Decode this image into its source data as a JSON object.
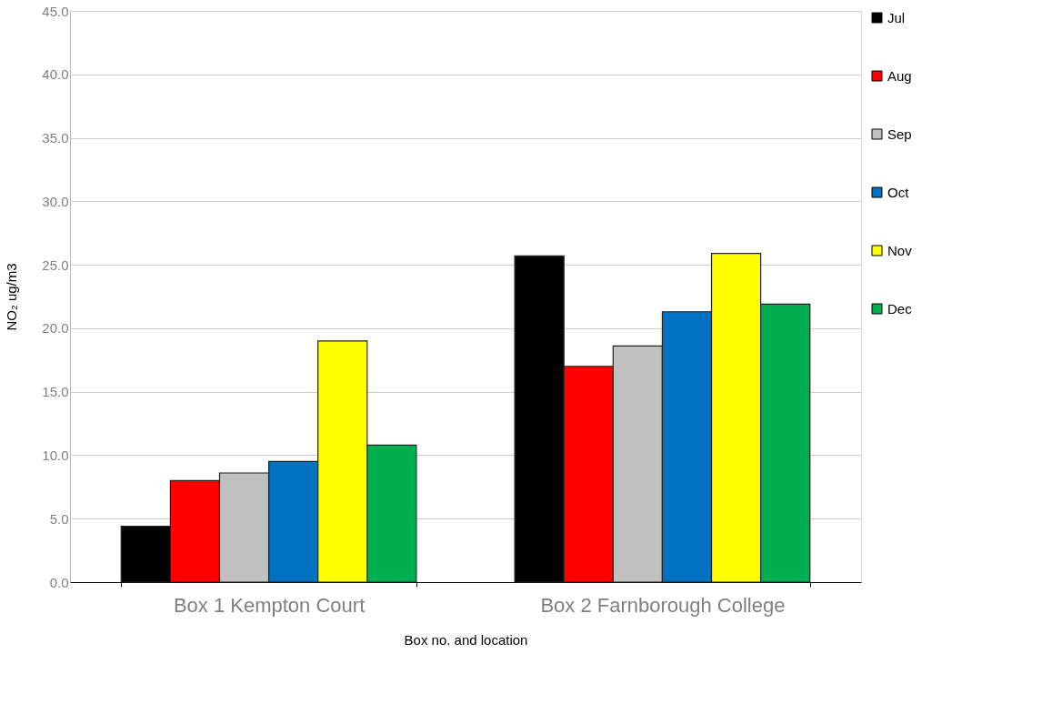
{
  "chart_data": {
    "type": "bar",
    "xlabel": "Box no. and location",
    "ylabel": "NO₂ ug/m3",
    "categories": [
      "Box 1 Kempton Court",
      "Box 2 Farnborough College"
    ],
    "series": [
      {
        "name": "Jul",
        "color": "#000000",
        "values": [
          4.4,
          25.7
        ]
      },
      {
        "name": "Aug",
        "color": "#ff0000",
        "values": [
          8.0,
          17.0
        ]
      },
      {
        "name": "Sep",
        "color": "#c0c0c0",
        "values": [
          8.6,
          18.6
        ]
      },
      {
        "name": "Oct",
        "color": "#0070c0",
        "values": [
          9.5,
          21.3
        ]
      },
      {
        "name": "Nov",
        "color": "#ffff00",
        "values": [
          19.0,
          25.9
        ]
      },
      {
        "name": "Dec",
        "color": "#00b050",
        "values": [
          10.8,
          21.9
        ]
      }
    ],
    "ylim": [
      0,
      45
    ],
    "yticks": [
      {
        "value": 0,
        "label": "0.0"
      },
      {
        "value": 5,
        "label": "5.0"
      },
      {
        "value": 10,
        "label": "10.0"
      },
      {
        "value": 15,
        "label": "15.0"
      },
      {
        "value": 20,
        "label": "20.0"
      },
      {
        "value": 25,
        "label": "25.0"
      },
      {
        "value": 30,
        "label": "30.0"
      },
      {
        "value": 35,
        "label": "35.0"
      },
      {
        "value": 40,
        "label": "40.0"
      },
      {
        "value": 45,
        "label": "45.0"
      }
    ],
    "grid": "y",
    "legend": "right"
  }
}
